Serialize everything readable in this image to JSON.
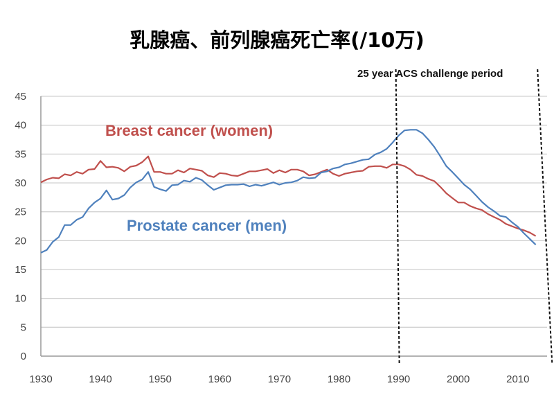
{
  "chart_data": {
    "type": "line",
    "title": "乳腺癌、前列腺癌死亡率(/10万)",
    "xlabel": "",
    "ylabel": "",
    "xlim": [
      1930,
      2014
    ],
    "ylim": [
      0,
      45
    ],
    "grid": true,
    "xticks": [
      1930,
      1940,
      1950,
      1960,
      1970,
      1980,
      1990,
      2000,
      2010
    ],
    "yticks": [
      0,
      5,
      10,
      15,
      20,
      25,
      30,
      35,
      40,
      45
    ],
    "annotation": {
      "label": "25 year ACS challenge period",
      "start": 1990,
      "end": 2014
    },
    "x_start": 1930,
    "series": [
      {
        "name": "Breast cancer (women)",
        "color": "#c0504d",
        "values": [
          30.1,
          30.6,
          30.9,
          30.8,
          31.5,
          31.3,
          31.9,
          31.6,
          32.3,
          32.4,
          33.8,
          32.7,
          32.8,
          32.6,
          32.0,
          32.8,
          33.0,
          33.6,
          34.6,
          31.9,
          31.9,
          31.6,
          31.6,
          32.2,
          31.8,
          32.5,
          32.3,
          32.1,
          31.3,
          31.0,
          31.7,
          31.6,
          31.3,
          31.2,
          31.6,
          32.0,
          32.0,
          32.2,
          32.4,
          31.7,
          32.2,
          31.8,
          32.3,
          32.3,
          32.0,
          31.3,
          31.5,
          31.9,
          32.3,
          31.6,
          31.2,
          31.6,
          31.8,
          32.0,
          32.1,
          32.8,
          32.9,
          32.9,
          32.6,
          33.2,
          33.2,
          32.9,
          32.3,
          31.4,
          31.2,
          30.7,
          30.3,
          29.3,
          28.2,
          27.4,
          26.6,
          26.6,
          26.0,
          25.6,
          25.3,
          24.6,
          24.1,
          23.6,
          22.9,
          22.5,
          22.1,
          21.8,
          21.4,
          20.8
        ]
      },
      {
        "name": "Prostate cancer (men)",
        "color": "#4f81bd",
        "values": [
          17.9,
          18.4,
          19.8,
          20.6,
          22.7,
          22.7,
          23.6,
          24.1,
          25.6,
          26.6,
          27.3,
          28.7,
          27.1,
          27.3,
          27.9,
          29.2,
          30.1,
          30.6,
          31.9,
          29.3,
          28.9,
          28.6,
          29.6,
          29.7,
          30.4,
          30.2,
          30.9,
          30.5,
          29.6,
          28.8,
          29.2,
          29.6,
          29.7,
          29.7,
          29.8,
          29.4,
          29.7,
          29.5,
          29.8,
          30.1,
          29.7,
          30.0,
          30.1,
          30.4,
          31.0,
          30.8,
          30.9,
          31.8,
          32.0,
          32.5,
          32.7,
          33.2,
          33.4,
          33.7,
          34.0,
          34.1,
          34.9,
          35.3,
          35.9,
          37.0,
          38.2,
          39.1,
          39.2,
          39.2,
          38.6,
          37.5,
          36.2,
          34.6,
          32.9,
          31.9,
          30.8,
          29.7,
          28.9,
          27.8,
          26.7,
          25.8,
          25.1,
          24.3,
          24.1,
          23.2,
          22.4,
          21.3,
          20.3,
          19.3
        ]
      }
    ]
  }
}
